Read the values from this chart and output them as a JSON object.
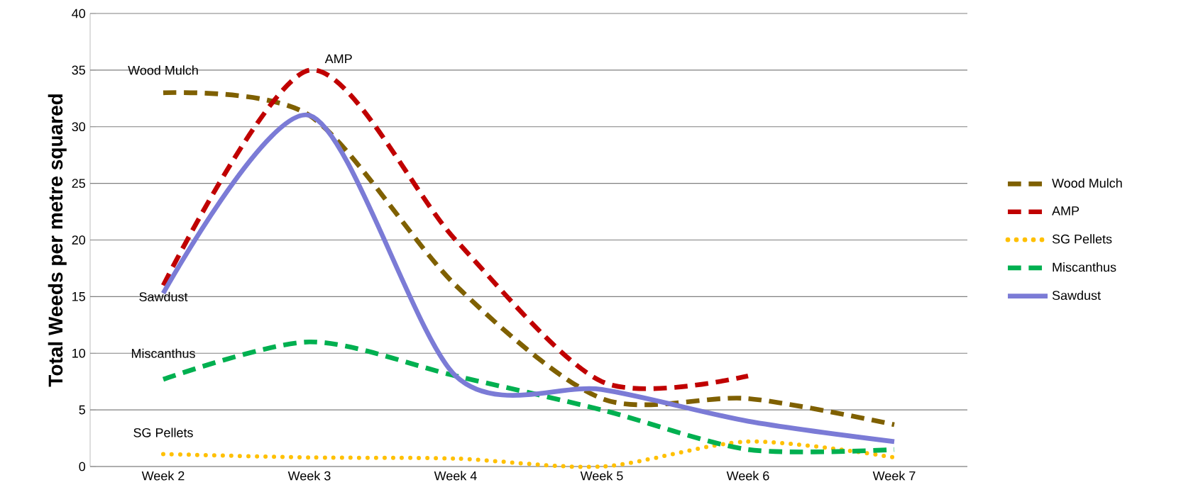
{
  "chart_data": {
    "type": "line",
    "ylabel": "Total Weeds per metre squared",
    "categories": [
      "Week 2",
      "Week 3",
      "Week 4",
      "Week 5",
      "Week 6",
      "Week 7"
    ],
    "series": [
      {
        "name": "Wood Mulch",
        "color": "#7f6000",
        "line_style": "dashed",
        "values": [
          33,
          31,
          16,
          6,
          6,
          3.7
        ]
      },
      {
        "name": "AMP",
        "color": "#c00000",
        "line_style": "dashed",
        "values": [
          16,
          35,
          20,
          7.5,
          8,
          null
        ]
      },
      {
        "name": "SG Pellets",
        "color": "#ffc000",
        "line_style": "dotted",
        "values": [
          1.1,
          0.8,
          0.7,
          0,
          2.2,
          0.8
        ]
      },
      {
        "name": "Miscanthus",
        "color": "#00b050",
        "line_style": "dashed",
        "values": [
          7.7,
          11,
          8,
          5,
          1.5,
          1.5
        ]
      },
      {
        "name": "Sawdust",
        "color": "#7b7bd6",
        "line_style": "solid",
        "values": [
          15.3,
          31,
          8,
          6.8,
          4,
          2.2
        ]
      }
    ],
    "annotations": [
      "Wood Mulch",
      "AMP",
      "Sawdust",
      "Miscanthus",
      "SG Pellets"
    ],
    "ylim": [
      0,
      40
    ],
    "yticks": [
      0,
      5,
      10,
      15,
      20,
      25,
      30,
      35,
      40
    ],
    "grid": "y",
    "legend": "right"
  }
}
